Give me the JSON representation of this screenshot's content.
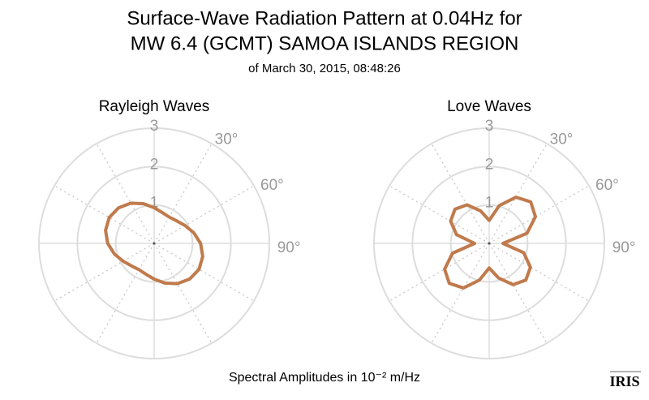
{
  "header": {
    "title_lines": [
      "Surface-Wave Radiation Pattern at 0.04Hz for",
      "MW 6.4 (GCMT) SAMOA ISLANDS REGION"
    ],
    "subtitle": "of March 30, 2015, 08:48:26"
  },
  "footer": {
    "xlabel": "Spectral Amplitudes in 10⁻² m/Hz",
    "logo": "IRIS"
  },
  "chart_data": [
    {
      "type": "polar",
      "title": "Rayleigh Waves",
      "color": "#c07a4c",
      "direction": "clockwise",
      "zero": "N",
      "rlim": [
        0,
        3
      ],
      "rticks": [
        1,
        2,
        3
      ],
      "thetagrid": 30,
      "thetaticks": [
        {
          "value": 30,
          "label": "30°"
        },
        {
          "value": 60,
          "label": "60°"
        },
        {
          "value": 90,
          "label": "90°"
        }
      ],
      "theta": [
        0,
        15,
        30,
        45,
        60,
        75,
        90,
        105,
        120,
        135,
        150,
        165,
        180,
        195,
        210,
        225,
        240,
        255,
        270,
        285,
        300,
        315,
        330,
        345
      ],
      "values": [
        0.93,
        0.83,
        0.79,
        0.83,
        0.93,
        1.07,
        1.21,
        1.31,
        1.35,
        1.31,
        1.21,
        1.07,
        0.93,
        0.83,
        0.79,
        0.83,
        0.93,
        1.07,
        1.21,
        1.31,
        1.35,
        1.31,
        1.21,
        1.07
      ]
    },
    {
      "type": "polar",
      "title": "Love Waves",
      "color": "#c07a4c",
      "direction": "clockwise",
      "zero": "N",
      "rlim": [
        0,
        3
      ],
      "rticks": [
        1,
        2,
        3
      ],
      "thetagrid": 30,
      "thetaticks": [
        {
          "value": 30,
          "label": "30°"
        },
        {
          "value": 60,
          "label": "60°"
        },
        {
          "value": 90,
          "label": "90°"
        }
      ],
      "theta": [
        0,
        15,
        30,
        45,
        60,
        75,
        90,
        105,
        120,
        135,
        150,
        165,
        180,
        195,
        210,
        225,
        240,
        255,
        270,
        285,
        300,
        315,
        330,
        345
      ],
      "values": [
        0.6,
        1.02,
        1.39,
        1.53,
        1.39,
        1.02,
        0.36,
        0.93,
        1.24,
        1.35,
        1.24,
        0.93,
        0.64,
        0.99,
        1.34,
        1.47,
        1.34,
        0.99,
        0.38,
        0.88,
        1.16,
        1.26,
        1.16,
        0.88
      ]
    }
  ]
}
